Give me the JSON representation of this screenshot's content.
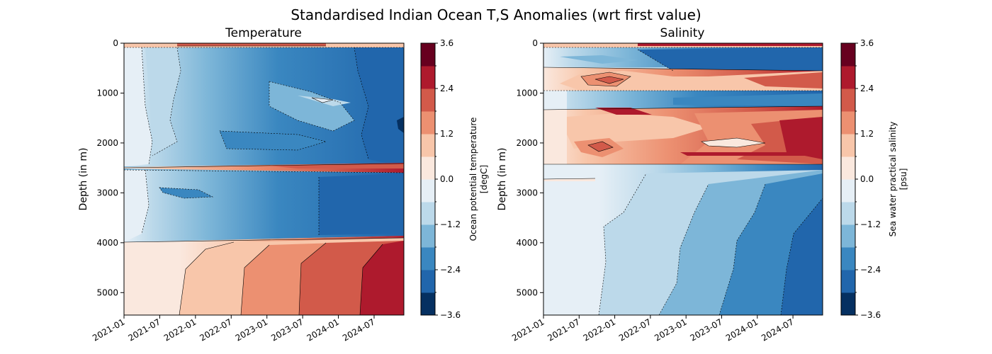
{
  "figure_title": "Standardised Indian Ocean T,S Anomalies (wrt first value)",
  "colors": {
    "levels": [
      "#053061",
      "#2166ac",
      "#4393c3",
      "#92c5de",
      "#d1e5f0",
      "#fddbc7",
      "#f4a582",
      "#d6604d",
      "#b2182b",
      "#67001f"
    ],
    "palette": [
      "#053061",
      "#2166ac",
      "#3a87c0",
      "#7db6d8",
      "#bcd9ea",
      "#e6eff6",
      "#fae8de",
      "#f8c6aa",
      "#ec9071",
      "#d25a4a",
      "#ae1a2d",
      "#67001f"
    ]
  },
  "chart_data": [
    {
      "type": "heatmap",
      "title": "Temperature",
      "ylabel": "Depth (in m)",
      "xlabel": "",
      "x_ticks": [
        "2021-01",
        "2021-07",
        "2022-01",
        "2022-07",
        "2023-01",
        "2023-07",
        "2024-01",
        "2024-07"
      ],
      "xlim": [
        "2021-01",
        "2024-12"
      ],
      "y_ticks": [
        0,
        1000,
        2000,
        3000,
        4000,
        5000
      ],
      "ylim": [
        5450,
        0
      ],
      "colorbar": {
        "label": "Ocean potential temperature\n[degC]",
        "ticks": [
          3.6,
          2.4,
          1.2,
          0.0,
          -1.2,
          -2.4,
          -3.6
        ],
        "tick_labels": [
          "3.6",
          "2.4",
          "1.2",
          "0.0",
          "−1.2",
          "−2.4",
          "−3.6"
        ],
        "range": [
          -3.6,
          3.6
        ]
      },
      "depth_bands": [
        {
          "depth": [
            0,
            100
          ],
          "value": 2.5
        },
        {
          "depth": [
            100,
            250
          ],
          "value": -0.6
        },
        {
          "depth": [
            250,
            600
          ],
          "value": -1.4
        },
        {
          "depth": [
            600,
            1000
          ],
          "value": -1.8
        },
        {
          "depth": [
            1000,
            1400
          ],
          "value": -1.1
        },
        {
          "depth": [
            1400,
            1900
          ],
          "value": -1.7
        },
        {
          "depth": [
            1900,
            2200
          ],
          "value": -1.5
        },
        {
          "depth": [
            2200,
            2450
          ],
          "value": -1.3
        },
        {
          "depth": [
            2450,
            2650
          ],
          "value": 2.7
        },
        {
          "depth": [
            2650,
            3400
          ],
          "value": -1.9
        },
        {
          "depth": [
            3400,
            3950
          ],
          "value": -1.4
        },
        {
          "depth": [
            3950,
            5450
          ],
          "value": 2.9
        }
      ]
    },
    {
      "type": "heatmap",
      "title": "Salinity",
      "ylabel": "Depth (in m)",
      "xlabel": "",
      "x_ticks": [
        "2021-01",
        "2021-07",
        "2022-01",
        "2022-07",
        "2023-01",
        "2023-07",
        "2024-01",
        "2024-07"
      ],
      "xlim": [
        "2021-01",
        "2024-12"
      ],
      "y_ticks": [
        0,
        1000,
        2000,
        3000,
        4000,
        5000
      ],
      "ylim": [
        5450,
        0
      ],
      "colorbar": {
        "label": "Sea water practical salinity\n[psu]",
        "ticks": [
          3.6,
          2.4,
          1.2,
          0.0,
          -1.2,
          -2.4,
          -3.6
        ],
        "tick_labels": [
          "3.6",
          "2.4",
          "1.2",
          "0.0",
          "−1.2",
          "−2.4",
          "−3.6"
        ],
        "range": [
          -3.6,
          3.6
        ]
      },
      "depth_bands": [
        {
          "depth": [
            0,
            80
          ],
          "value": 2.5
        },
        {
          "depth": [
            80,
            450
          ],
          "value": -1.3
        },
        {
          "depth": [
            450,
            900
          ],
          "value": 1.6
        },
        {
          "depth": [
            900,
            1300
          ],
          "value": -1.0
        },
        {
          "depth": [
            1300,
            2400
          ],
          "value": 1.9
        },
        {
          "depth": [
            2400,
            5450
          ],
          "value": -1.9
        }
      ]
    }
  ]
}
